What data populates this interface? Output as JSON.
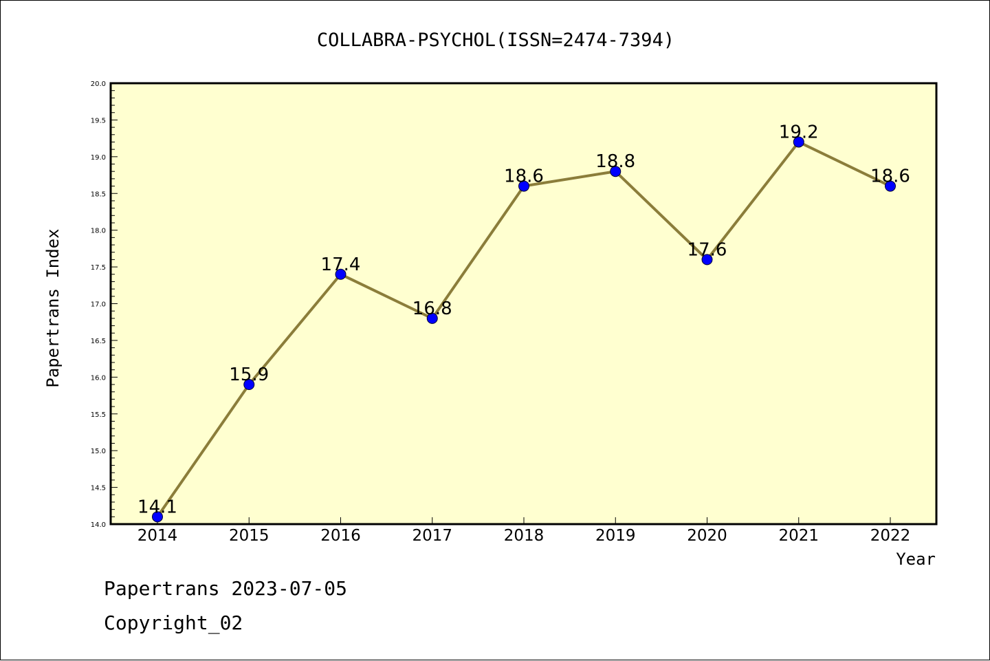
{
  "chart_data": {
    "type": "line",
    "title": "COLLABRA-PSYCHOL(ISSN=2474-7394)",
    "xlabel": "Year",
    "ylabel": "Papertrans Index",
    "categories": [
      "2014",
      "2015",
      "2016",
      "2017",
      "2018",
      "2019",
      "2020",
      "2021",
      "2022"
    ],
    "series": [
      {
        "values": [
          14.1,
          15.9,
          17.4,
          16.8,
          18.6,
          18.8,
          17.6,
          19.2,
          18.6
        ]
      }
    ],
    "data_labels": [
      "14.1",
      "15.9",
      "17.4",
      "16.8",
      "18.6",
      "18.8",
      "17.6",
      "19.2",
      "18.6"
    ],
    "ylim": [
      14.0,
      20.0
    ],
    "yticks": [
      "14.0",
      "14.5",
      "15.0",
      "15.5",
      "16.0",
      "16.5",
      "17.0",
      "17.5",
      "18.0",
      "18.5",
      "19.0",
      "19.5",
      "20.0"
    ],
    "grid": false,
    "colors": {
      "plot_background": "#ffffd0",
      "line": "#8b7d3a",
      "marker": "#0000ff"
    }
  },
  "footer": {
    "line1": "Papertrans 2023-07-05",
    "line2": "Copyright_02"
  }
}
